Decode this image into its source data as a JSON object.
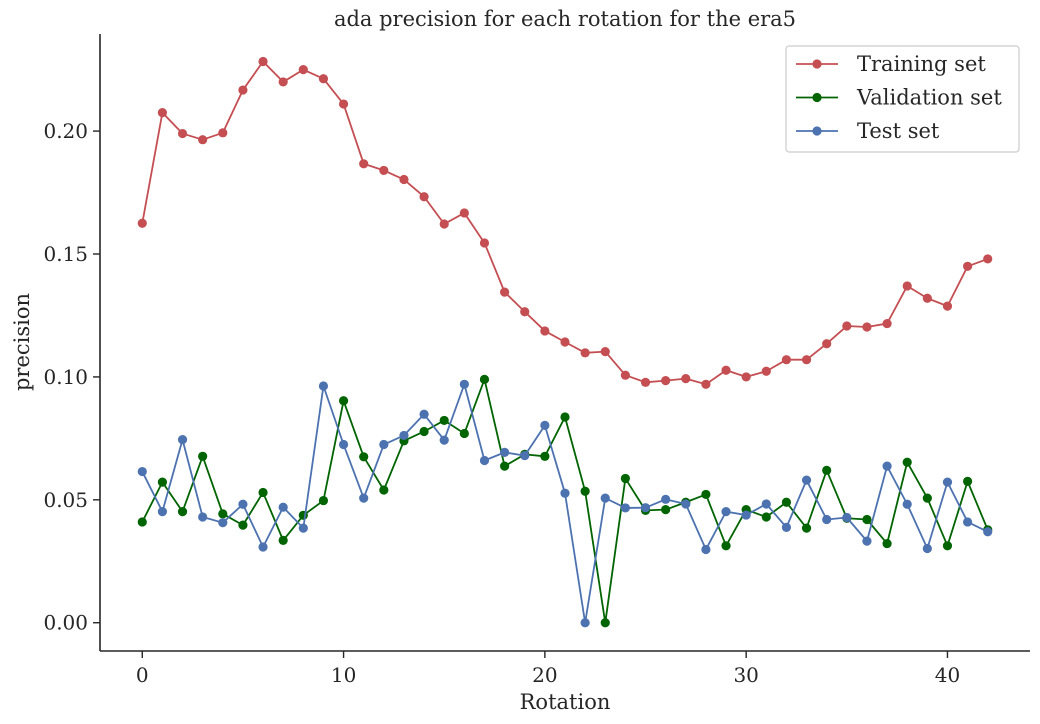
{
  "chart_data": {
    "type": "line",
    "title": "ada precision for each rotation for the era5",
    "xlabel": "Rotation",
    "ylabel": "precision",
    "xlim": [
      -2.1,
      44.1
    ],
    "ylim": [
      -0.0115,
      0.2395
    ],
    "xticks": [
      0,
      10,
      20,
      30,
      40
    ],
    "xtick_labels": [
      "0",
      "10",
      "20",
      "30",
      "40"
    ],
    "yticks": [
      0.0,
      0.05,
      0.1,
      0.15,
      0.2
    ],
    "ytick_labels": [
      "0.00",
      "0.05",
      "0.10",
      "0.15",
      "0.20"
    ],
    "grid": false,
    "legend_position": "top-right",
    "x": [
      0,
      1,
      2,
      3,
      4,
      5,
      6,
      7,
      8,
      9,
      10,
      11,
      12,
      13,
      14,
      15,
      16,
      17,
      18,
      19,
      20,
      21,
      22,
      23,
      24,
      25,
      26,
      27,
      28,
      29,
      30,
      31,
      32,
      33,
      34,
      35,
      36,
      37,
      38,
      39,
      40,
      41,
      42
    ],
    "series": [
      {
        "name": "Training set",
        "color": "#c44e52",
        "values": [
          0.1625,
          0.2075,
          0.199,
          0.1965,
          0.1993,
          0.2167,
          0.2283,
          0.22,
          0.225,
          0.2213,
          0.211,
          0.1867,
          0.184,
          0.1803,
          0.1733,
          0.1622,
          0.1667,
          0.1545,
          0.1345,
          0.1265,
          0.1187,
          0.1142,
          0.1098,
          0.1103,
          0.1007,
          0.0978,
          0.0985,
          0.0993,
          0.097,
          0.1027,
          0.1,
          0.1023,
          0.107,
          0.107,
          0.1135,
          0.1207,
          0.1203,
          0.1217,
          0.137,
          0.132,
          0.1288,
          0.145,
          0.148
        ]
      },
      {
        "name": "Validation set",
        "color": "#006400",
        "values": [
          0.041,
          0.0572,
          0.0452,
          0.0677,
          0.0443,
          0.0397,
          0.053,
          0.0335,
          0.0437,
          0.0497,
          0.0903,
          0.0675,
          0.054,
          0.074,
          0.0778,
          0.0823,
          0.077,
          0.099,
          0.0637,
          0.0685,
          0.0677,
          0.0837,
          0.0535,
          0.0,
          0.0587,
          0.0457,
          0.046,
          0.049,
          0.0522,
          0.0313,
          0.046,
          0.043,
          0.049,
          0.0385,
          0.062,
          0.0425,
          0.042,
          0.0322,
          0.0653,
          0.0507,
          0.0313,
          0.0575,
          0.0378
        ]
      },
      {
        "name": "Test set",
        "color": "#4c72b0",
        "values": [
          0.0615,
          0.0452,
          0.0745,
          0.043,
          0.0407,
          0.0482,
          0.0308,
          0.047,
          0.0385,
          0.0963,
          0.0725,
          0.0507,
          0.0725,
          0.0762,
          0.0848,
          0.0743,
          0.097,
          0.066,
          0.0693,
          0.068,
          0.0803,
          0.0527,
          0.0,
          0.0507,
          0.0467,
          0.0468,
          0.0502,
          0.0483,
          0.0298,
          0.0452,
          0.0438,
          0.0483,
          0.0388,
          0.058,
          0.042,
          0.0428,
          0.0332,
          0.0637,
          0.0482,
          0.0302,
          0.0572,
          0.041,
          0.037
        ]
      }
    ]
  }
}
